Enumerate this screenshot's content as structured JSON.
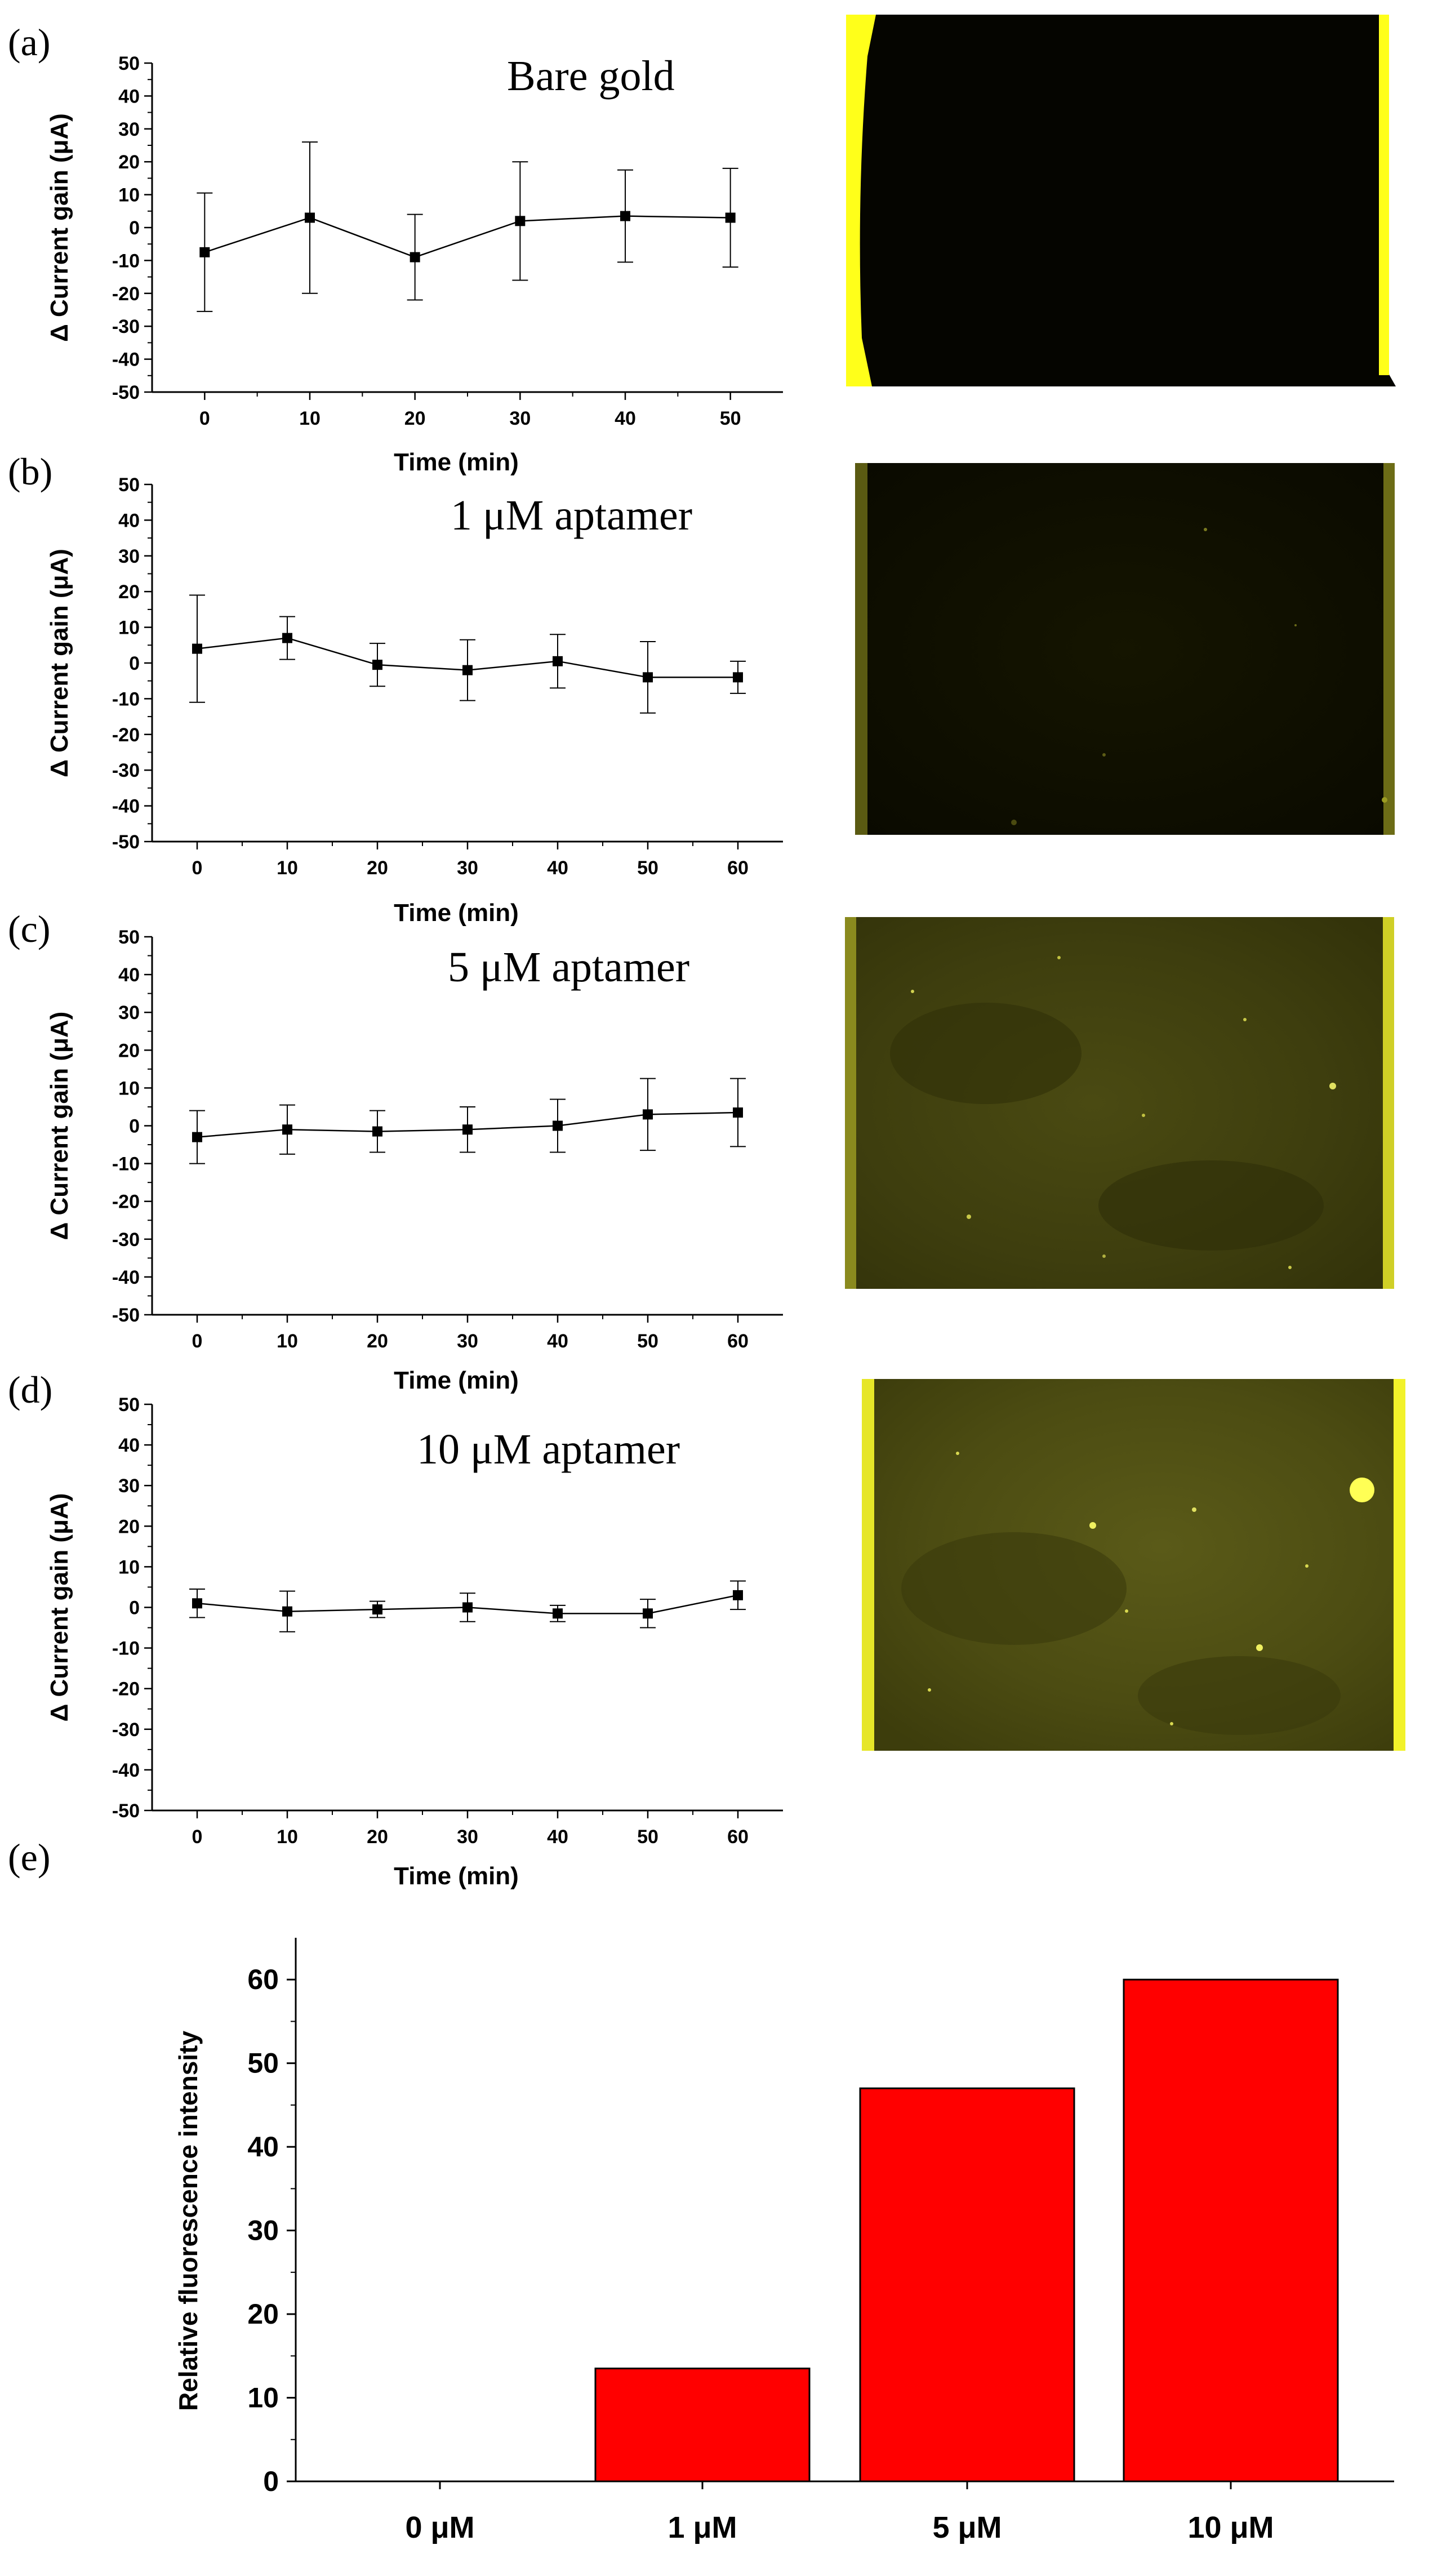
{
  "panels": [
    {
      "letter": "(a)",
      "annotation": "Bare gold"
    },
    {
      "letter": "(b)",
      "annotation": "1 μM aptamer"
    },
    {
      "letter": "(c)",
      "annotation": "5 μM aptamer"
    },
    {
      "letter": "(d)",
      "annotation": "10 μM aptamer"
    },
    {
      "letter": "(e)",
      "annotation": ""
    }
  ],
  "colors": {
    "bar": "#ff0000",
    "line": "#000000",
    "electrode_edge": "#ffff1a"
  },
  "fluorescence_images": [
    {
      "panel": "a",
      "description_level": "dark",
      "fluorescence": "none"
    },
    {
      "panel": "b",
      "description_level": "faint",
      "fluorescence": "low"
    },
    {
      "panel": "c",
      "description_level": "moderate",
      "fluorescence": "medium"
    },
    {
      "panel": "d",
      "description_level": "bright",
      "fluorescence": "high"
    }
  ],
  "chart_data": [
    {
      "type": "line",
      "panel": "a",
      "xlabel": "Time (min)",
      "ylabel": "Δ Current gain (μA)",
      "ylim": [
        -50,
        50
      ],
      "xlim": [
        -5,
        55
      ],
      "xticks": [
        0,
        10,
        20,
        30,
        40,
        50
      ],
      "yticks": [
        50,
        40,
        30,
        20,
        10,
        0,
        -10,
        -20,
        -30,
        -40,
        -50
      ],
      "x": [
        0,
        10,
        20,
        30,
        40,
        50
      ],
      "y": [
        -7.5,
        3,
        -9,
        2,
        3.5,
        3
      ],
      "err": [
        18,
        23,
        13,
        18,
        14,
        15
      ]
    },
    {
      "type": "line",
      "panel": "b",
      "xlabel": "Time (min)",
      "ylabel": "Δ Current gain (μA)",
      "ylim": [
        -50,
        50
      ],
      "xlim": [
        -5,
        65
      ],
      "xticks": [
        0,
        10,
        20,
        30,
        40,
        50,
        60
      ],
      "yticks": [
        50,
        40,
        30,
        20,
        10,
        0,
        -10,
        -20,
        -30,
        -40,
        -50
      ],
      "x": [
        0,
        10,
        20,
        30,
        40,
        50,
        60
      ],
      "y": [
        4,
        7,
        -0.5,
        -2,
        0.5,
        -4,
        -4
      ],
      "err": [
        15,
        6,
        6,
        8.5,
        7.5,
        10,
        4.5
      ]
    },
    {
      "type": "line",
      "panel": "c",
      "xlabel": "Time (min)",
      "ylabel": "Δ Current gain (μA)",
      "ylim": [
        -50,
        50
      ],
      "xlim": [
        -5,
        65
      ],
      "xticks": [
        0,
        10,
        20,
        30,
        40,
        50,
        60
      ],
      "yticks": [
        50,
        40,
        30,
        20,
        10,
        0,
        -10,
        -20,
        -30,
        -40,
        -50
      ],
      "x": [
        0,
        10,
        20,
        30,
        40,
        50,
        60
      ],
      "y": [
        -3,
        -1,
        -1.5,
        -1,
        0,
        3,
        3.5
      ],
      "err": [
        7,
        6.5,
        5.5,
        6,
        7,
        9.5,
        9
      ]
    },
    {
      "type": "line",
      "panel": "d",
      "xlabel": "Time (min)",
      "ylabel": "Δ Current gain (μA)",
      "ylim": [
        -50,
        50
      ],
      "xlim": [
        -5,
        65
      ],
      "xticks": [
        0,
        10,
        20,
        30,
        40,
        50,
        60
      ],
      "yticks": [
        50,
        40,
        30,
        20,
        10,
        0,
        -10,
        -20,
        -30,
        -40,
        -50
      ],
      "x": [
        0,
        10,
        20,
        30,
        40,
        50,
        60
      ],
      "y": [
        1,
        -1,
        -0.5,
        0,
        -1.5,
        -1.5,
        3
      ],
      "err": [
        3.5,
        5,
        2,
        3.5,
        2,
        3.5,
        3.5
      ]
    },
    {
      "type": "bar",
      "panel": "e",
      "ylabel": "Relative fluorescence intensity",
      "xlabel": "",
      "categories": [
        "0 μM",
        "1 μM",
        "5 μM",
        "10 μM"
      ],
      "values": [
        0,
        13.5,
        47,
        60
      ],
      "ylim": [
        0,
        65
      ],
      "yticks": [
        0,
        10,
        20,
        30,
        40,
        50,
        60
      ]
    }
  ]
}
